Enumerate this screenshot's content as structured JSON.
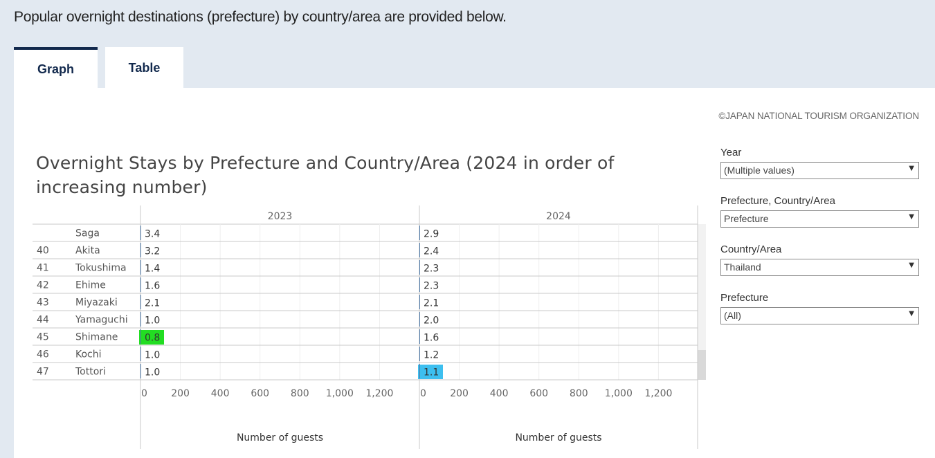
{
  "page": {
    "intro": "Popular overnight destinations (prefecture) by country/area are provided below.",
    "tabs": [
      {
        "label": "Graph",
        "active": true
      },
      {
        "label": "Table",
        "active": false
      }
    ],
    "copyright": "©JAPAN NATIONAL TOURISM ORGANIZATION"
  },
  "filters": {
    "year": {
      "label": "Year",
      "value": "(Multiple values)"
    },
    "granularity": {
      "label": "Prefecture, Country/Area",
      "value": "Prefecture"
    },
    "country": {
      "label": "Country/Area",
      "value": "Thailand"
    },
    "prefecture": {
      "label": "Prefecture",
      "value": "(All)"
    }
  },
  "chart_data": {
    "type": "bar",
    "title": "Overnight Stays by Prefecture and Country/Area (2024 in order of increasing number)",
    "rows": [
      {
        "rank": "",
        "prefecture": "Saga"
      },
      {
        "rank": "40",
        "prefecture": "Akita"
      },
      {
        "rank": "41",
        "prefecture": "Tokushima"
      },
      {
        "rank": "42",
        "prefecture": "Ehime"
      },
      {
        "rank": "43",
        "prefecture": "Miyazaki"
      },
      {
        "rank": "44",
        "prefecture": "Yamaguchi"
      },
      {
        "rank": "45",
        "prefecture": "Shimane"
      },
      {
        "rank": "46",
        "prefecture": "Kochi"
      },
      {
        "rank": "47",
        "prefecture": "Tottori"
      }
    ],
    "series": [
      {
        "name": "2023",
        "values": [
          3.4,
          3.2,
          1.4,
          1.6,
          2.1,
          1.0,
          0.8,
          1.0,
          1.0
        ],
        "highlight_index": 6,
        "highlight_color": "#22dd22"
      },
      {
        "name": "2024",
        "values": [
          2.9,
          2.4,
          2.3,
          2.3,
          2.1,
          2.0,
          1.6,
          1.2,
          1.1
        ],
        "highlight_index": 8,
        "highlight_color": "#3dbfef"
      }
    ],
    "xlabel": "Number of guests",
    "xticks": [
      0,
      200,
      400,
      600,
      800,
      1000,
      1200
    ],
    "xtick_labels": [
      "0",
      "200",
      "400",
      "600",
      "800",
      "1,000",
      "1,200"
    ],
    "xlim": [
      0,
      1400
    ],
    "grid": true
  }
}
